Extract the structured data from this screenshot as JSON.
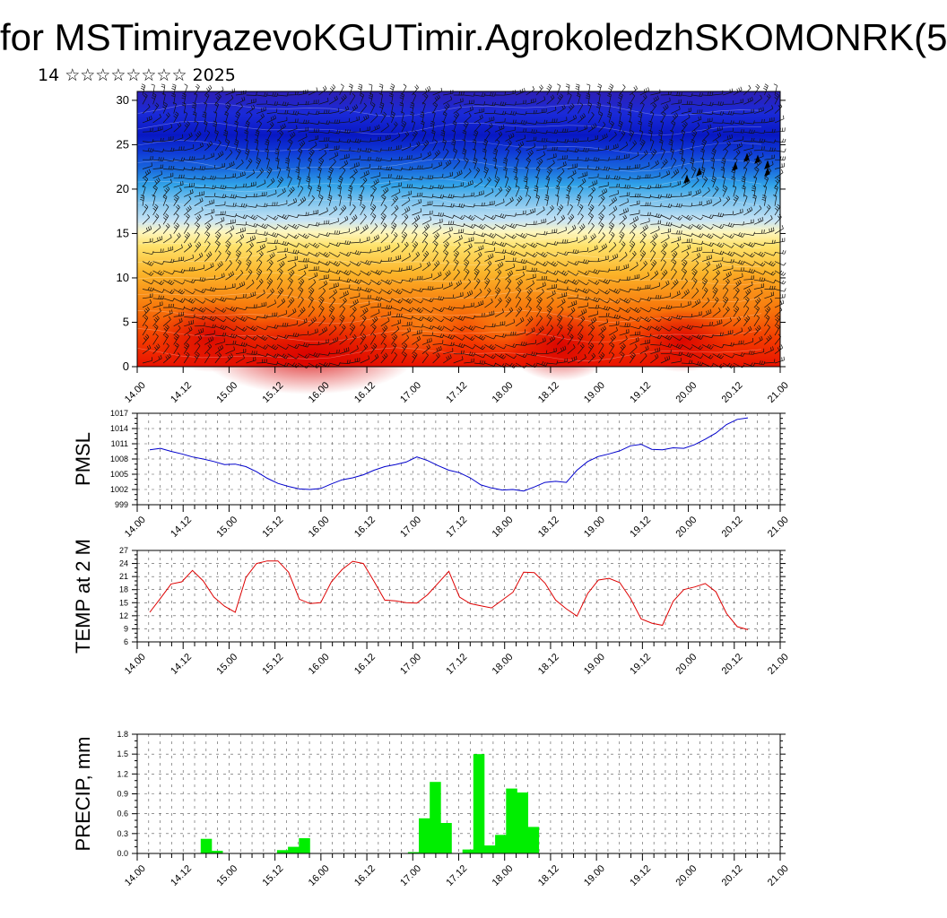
{
  "header": {
    "title": "for MSTimiryazevoKGUTimir.AgrokoledzhSKOMONRK(5",
    "subtitle": "14 ☆☆☆☆☆☆☆☆ 2025"
  },
  "chart_data": [
    {
      "type": "heatmap",
      "name": "height-time cross section",
      "x_ticks": [
        "14.00",
        "14.12",
        "15.00",
        "15.12",
        "16.00",
        "16.12",
        "17.00",
        "17.12",
        "18.00",
        "18.12",
        "19.00",
        "19.12",
        "20.00",
        "20.12",
        "21.00"
      ],
      "y_ticks": [
        "0",
        "5",
        "10",
        "15",
        "20",
        "25",
        "30"
      ],
      "ylim": [
        0,
        31
      ],
      "colormap": "blue (top) to red (bottom)",
      "overlay": "wind barbs"
    },
    {
      "type": "line",
      "ylabel": "PMSL",
      "ylim": [
        999,
        1017
      ],
      "y_ticks": [
        "999",
        "1002",
        "1005",
        "1008",
        "1011",
        "1014",
        "1017"
      ],
      "x_ticks": [
        "14.00",
        "14.12",
        "15.00",
        "15.12",
        "16.00",
        "16.12",
        "17.00",
        "17.12",
        "18.00",
        "18.12",
        "19.00",
        "19.12",
        "20.00",
        "20.12",
        "21.00"
      ],
      "color": "#0000cc",
      "values": [
        1009.8,
        1010.1,
        1009.5,
        1009.0,
        1008.4,
        1008.0,
        1007.5,
        1006.9,
        1007.0,
        1006.5,
        1005.5,
        1004.2,
        1003.2,
        1002.6,
        1002.1,
        1002.0,
        1002.2,
        1003.1,
        1003.9,
        1004.3,
        1004.9,
        1005.8,
        1006.5,
        1006.9,
        1007.4,
        1008.4,
        1007.7,
        1006.7,
        1005.8,
        1005.3,
        1004.3,
        1002.9,
        1002.3,
        1001.9,
        1002.0,
        1001.7,
        1002.5,
        1003.4,
        1003.6,
        1003.4,
        1005.8,
        1007.5,
        1008.5,
        1009.0,
        1009.6,
        1010.6,
        1010.9,
        1009.9,
        1009.8,
        1010.2,
        1010.1,
        1010.8,
        1011.9,
        1013.1,
        1014.8,
        1015.8,
        1016.1
      ],
      "grid": true
    },
    {
      "type": "line",
      "ylabel": "TEMP at 2 M",
      "ylim": [
        6,
        27
      ],
      "y_ticks": [
        "6",
        "9",
        "12",
        "15",
        "18",
        "21",
        "24",
        "27"
      ],
      "x_ticks": [
        "14.00",
        "14.12",
        "15.00",
        "15.12",
        "16.00",
        "16.12",
        "17.00",
        "17.12",
        "18.00",
        "18.12",
        "19.00",
        "19.12",
        "20.00",
        "20.12",
        "21.00"
      ],
      "color": "#dd0000",
      "values": [
        12.8,
        16.0,
        19.3,
        19.8,
        22.4,
        20.0,
        16.3,
        14.2,
        12.8,
        20.8,
        24.0,
        24.6,
        24.6,
        22.0,
        15.8,
        14.8,
        15.0,
        19.8,
        22.6,
        24.5,
        24.0,
        19.9,
        15.6,
        15.4,
        15.0,
        14.9,
        16.8,
        19.5,
        22.2,
        16.3,
        14.8,
        14.3,
        13.8,
        15.6,
        17.4,
        22.0,
        21.9,
        19.5,
        15.6,
        13.6,
        11.9,
        17.1,
        20.2,
        20.6,
        19.6,
        16.0,
        11.3,
        10.3,
        9.8,
        15.3,
        18.0,
        18.6,
        19.4,
        17.5,
        12.5,
        9.5,
        8.8
      ],
      "grid": true
    },
    {
      "type": "bar",
      "ylabel": "PRECIP, mm",
      "ylim": [
        0,
        1.8
      ],
      "y_ticks": [
        "0.0",
        "0.3",
        "0.6",
        "0.9",
        "1.2",
        "1.5",
        "1.8"
      ],
      "x_ticks": [
        "14.00",
        "14.12",
        "15.00",
        "15.12",
        "16.00",
        "16.12",
        "17.00",
        "17.12",
        "18.00",
        "18.12",
        "19.00",
        "19.12",
        "20.00",
        "20.12",
        "21.00"
      ],
      "color": "#00ee00",
      "values": [
        0,
        0,
        0,
        0,
        0,
        0.22,
        0.04,
        0,
        0,
        0,
        0,
        0,
        0.05,
        0.1,
        0.23,
        0,
        0,
        0,
        0,
        0,
        0,
        0,
        0,
        0,
        0.02,
        0.53,
        1.08,
        0.46,
        0,
        0.06,
        1.5,
        0.12,
        0.28,
        0.98,
        0.92,
        0.4,
        0,
        0,
        0,
        0,
        0,
        0,
        0,
        0,
        0,
        0,
        0,
        0,
        0,
        0,
        0,
        0,
        0,
        0,
        0,
        0
      ],
      "grid": true
    }
  ]
}
